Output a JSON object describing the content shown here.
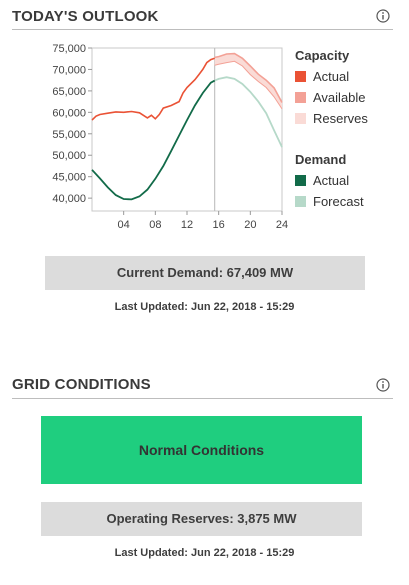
{
  "outlook": {
    "title": "TODAY'S OUTLOOK",
    "info_icon": "info-circle-icon",
    "chart_data": {
      "type": "line",
      "x_ticks": [
        "04",
        "08",
        "12",
        "16",
        "20",
        "24"
      ],
      "xlim": [
        0,
        24
      ],
      "y_ticks": [
        "40,000",
        "45,000",
        "50,000",
        "55,000",
        "60,000",
        "65,000",
        "70,000",
        "75,000"
      ],
      "ylim": [
        37000,
        75000
      ],
      "current_hour": 15.5,
      "capacity_actual": [
        [
          0,
          58200
        ],
        [
          0.5,
          59100
        ],
        [
          1,
          59500
        ],
        [
          2,
          59800
        ],
        [
          3,
          60100
        ],
        [
          4,
          60000
        ],
        [
          5,
          60200
        ],
        [
          6,
          59900
        ],
        [
          7,
          58700
        ],
        [
          7.5,
          59300
        ],
        [
          8,
          58500
        ],
        [
          8.5,
          59500
        ],
        [
          9,
          61000
        ],
        [
          10,
          61600
        ],
        [
          11,
          62500
        ],
        [
          11.5,
          64500
        ],
        [
          12,
          65800
        ],
        [
          13,
          67600
        ],
        [
          13.5,
          68800
        ],
        [
          14,
          70000
        ],
        [
          14.5,
          71600
        ],
        [
          15,
          72300
        ],
        [
          15.5,
          72600
        ]
      ],
      "capacity_available": [
        [
          15.5,
          72800
        ],
        [
          16,
          73000
        ],
        [
          17,
          73600
        ],
        [
          18,
          73700
        ],
        [
          19,
          72600
        ],
        [
          20,
          70800
        ],
        [
          21,
          68900
        ],
        [
          22,
          67500
        ],
        [
          23,
          65700
        ],
        [
          24,
          62300
        ]
      ],
      "capacity_reserves_low": [
        [
          15.5,
          71000
        ],
        [
          16,
          71200
        ],
        [
          17,
          71600
        ],
        [
          18,
          71900
        ],
        [
          19,
          70800
        ],
        [
          20,
          68800
        ],
        [
          21,
          67200
        ],
        [
          22,
          65800
        ],
        [
          23,
          63600
        ],
        [
          24,
          60800
        ]
      ],
      "demand_actual": [
        [
          0,
          46600
        ],
        [
          1,
          44600
        ],
        [
          2,
          42500
        ],
        [
          3,
          40700
        ],
        [
          4,
          39800
        ],
        [
          5,
          39700
        ],
        [
          6,
          40400
        ],
        [
          7,
          42000
        ],
        [
          8,
          44500
        ],
        [
          9,
          47500
        ],
        [
          10,
          51000
        ],
        [
          11,
          54600
        ],
        [
          12,
          58200
        ],
        [
          13,
          61600
        ],
        [
          14,
          64500
        ],
        [
          15,
          66900
        ],
        [
          15.5,
          67409
        ]
      ],
      "demand_forecast": [
        [
          15.5,
          67409
        ],
        [
          16,
          67800
        ],
        [
          17,
          68200
        ],
        [
          18,
          67800
        ],
        [
          19,
          66600
        ],
        [
          20,
          64800
        ],
        [
          21,
          62500
        ],
        [
          22,
          59800
        ],
        [
          23,
          55800
        ],
        [
          24,
          51900
        ]
      ]
    },
    "legend": {
      "capacity_heading": "Capacity",
      "capacity_items": [
        {
          "label": "Actual",
          "color": "#ea5235"
        },
        {
          "label": "Available",
          "color": "#f3a196"
        },
        {
          "label": "Reserves",
          "color": "#fadbd6"
        }
      ],
      "demand_heading": "Demand",
      "demand_items": [
        {
          "label": "Actual",
          "color": "#126b49"
        },
        {
          "label": "Forecast",
          "color": "#b6d9c9"
        }
      ]
    },
    "current_demand": "Current Demand: 67,409 MW",
    "last_updated": "Last Updated: Jun 22, 2018 - 15:29"
  },
  "grid": {
    "title": "GRID CONDITIONS",
    "info_icon": "info-circle-icon",
    "status_label": "Normal Conditions",
    "status_color": "#1fce7f",
    "operating_reserves": "Operating Reserves: 3,875 MW",
    "last_updated": "Last Updated: Jun 22, 2018 - 15:29"
  }
}
